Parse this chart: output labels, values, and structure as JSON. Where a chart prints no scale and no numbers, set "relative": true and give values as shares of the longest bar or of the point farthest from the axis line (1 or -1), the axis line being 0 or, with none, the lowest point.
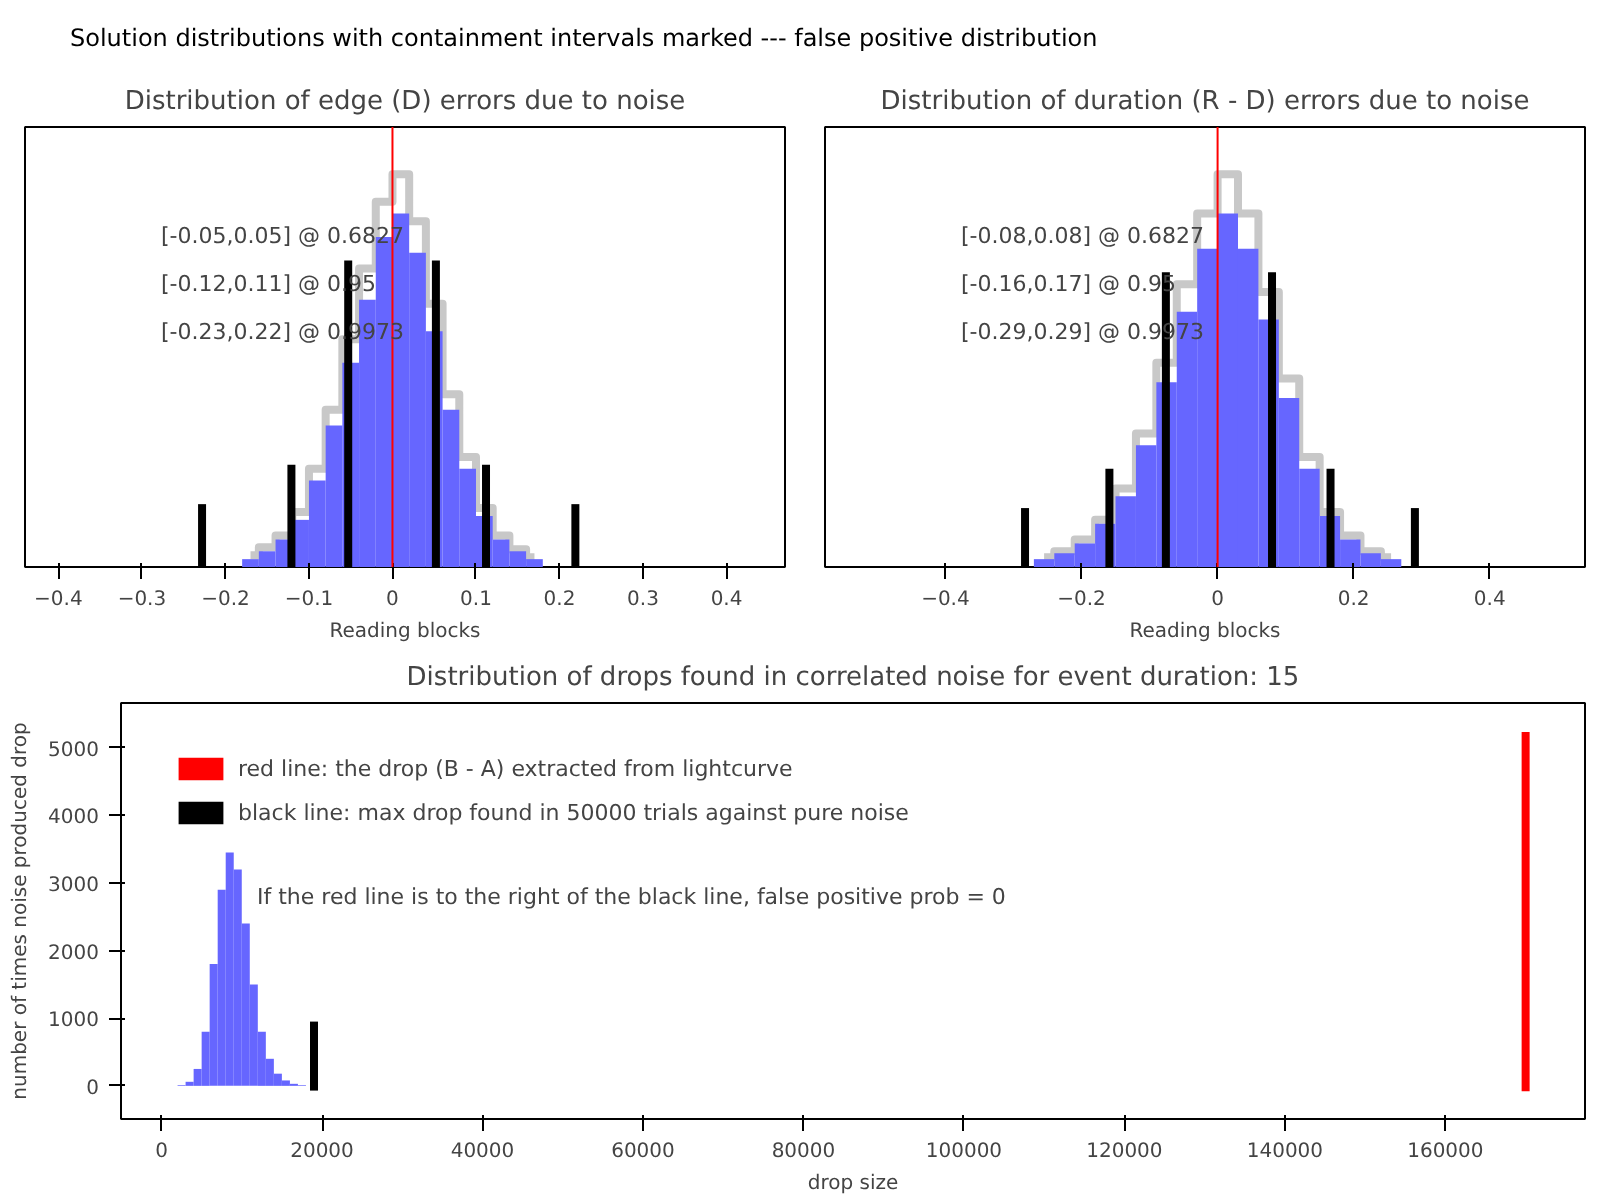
{
  "chart_data": [
    {
      "type": "other",
      "title": "Solution distributions with containment intervals marked --- false positive distribution"
    },
    {
      "type": "histogram",
      "title": "Distribution of edge (D) errors due to noise",
      "xlabel": "Reading blocks",
      "relative": true,
      "bins": [
        -0.18,
        -0.16,
        -0.14,
        -0.12,
        -0.1,
        -0.08,
        -0.06,
        -0.04,
        -0.02,
        0,
        0.02,
        0.04,
        0.06,
        0.08,
        0.1,
        0.12,
        0.14,
        0.16,
        0.18
      ],
      "xlim": [
        -0.44,
        0.47
      ],
      "xticks": [
        -0.4,
        -0.3,
        -0.2,
        -0.1,
        0,
        0.1,
        0.2,
        0.3,
        0.4
      ],
      "tick_labels": "x",
      "ref_lines": [
        {
          "axis": "x",
          "value": 0,
          "color": "#ff0000"
        }
      ],
      "annotations": [
        "[-0.05,0.05] @ 0.6827",
        "[-0.12,0.11] @ 0.95",
        "[-0.23,0.22] @ 0.9973"
      ],
      "series": [
        {
          "type": "step",
          "color": "#c8c8c8",
          "x": [
            -0.17,
            -0.15,
            -0.13,
            -0.11,
            -0.09,
            -0.07,
            -0.05,
            -0.03,
            -0.01,
            0.01,
            0.03,
            0.05,
            0.07,
            0.09,
            0.11,
            0.13,
            0.15,
            0.17
          ],
          "values": [
            0.03,
            0.05,
            0.08,
            0.14,
            0.25,
            0.4,
            0.58,
            0.76,
            0.93,
            1.0,
            0.88,
            0.67,
            0.44,
            0.28,
            0.15,
            0.08,
            0.045,
            0.025
          ]
        },
        {
          "color": "#6666ff",
          "values": [
            0.02,
            0.04,
            0.07,
            0.12,
            0.22,
            0.36,
            0.52,
            0.68,
            0.84,
            0.9,
            0.8,
            0.6,
            0.4,
            0.25,
            0.13,
            0.07,
            0.04,
            0.02
          ]
        },
        {
          "type": "bar",
          "color": "#000000",
          "x": [
            -0.228,
            -0.121,
            -0.053,
            0.052,
            0.112,
            0.219
          ],
          "values": [
            0.16,
            0.26,
            0.78,
            0.78,
            0.26,
            0.16
          ]
        }
      ]
    },
    {
      "type": "histogram",
      "title": "Distribution of duration (R - D) errors due to noise",
      "xlabel": "Reading blocks",
      "relative": true,
      "bins": [
        -0.27,
        -0.24,
        -0.21,
        -0.18,
        -0.15,
        -0.12,
        -0.09,
        -0.06,
        -0.03,
        0,
        0.03,
        0.06,
        0.09,
        0.12,
        0.15,
        0.18,
        0.21,
        0.24,
        0.27
      ],
      "xlim": [
        -0.577,
        0.54
      ],
      "xticks": [
        -0.4,
        -0.2,
        0,
        0.2,
        0.4
      ],
      "tick_labels": "x",
      "ref_lines": [
        {
          "axis": "x",
          "value": 0,
          "color": "#ff0000"
        }
      ],
      "annotations": [
        "[-0.08,0.08] @ 0.6827",
        "[-0.16,0.17] @ 0.95",
        "[-0.29,0.29] @ 0.9973"
      ],
      "series": [
        {
          "type": "step",
          "color": "#c8c8c8",
          "x": [
            -0.255,
            -0.225,
            -0.195,
            -0.165,
            -0.135,
            -0.105,
            -0.075,
            -0.045,
            -0.015,
            0.015,
            0.045,
            0.075,
            0.105,
            0.135,
            0.165,
            0.195,
            0.225,
            0.255
          ],
          "values": [
            0.025,
            0.04,
            0.07,
            0.12,
            0.2,
            0.34,
            0.52,
            0.72,
            0.9,
            1.0,
            0.9,
            0.7,
            0.48,
            0.28,
            0.14,
            0.08,
            0.04,
            0.025
          ]
        },
        {
          "color": "#6666ff",
          "values": [
            0.02,
            0.035,
            0.06,
            0.11,
            0.18,
            0.31,
            0.47,
            0.65,
            0.81,
            0.9,
            0.81,
            0.63,
            0.43,
            0.25,
            0.13,
            0.07,
            0.035,
            0.02
          ]
        },
        {
          "type": "bar",
          "color": "#000000",
          "x": [
            -0.283,
            -0.159,
            -0.076,
            0.08,
            0.166,
            0.29
          ],
          "values": [
            0.15,
            0.25,
            0.75,
            0.75,
            0.25,
            0.15
          ]
        }
      ]
    },
    {
      "type": "histogram",
      "title": "Distribution of drops found in correlated noise for event duration: 15",
      "xlabel": "drop size",
      "ylabel": "number of times noise produced drop",
      "bins": [
        2000,
        3000,
        4000,
        5000,
        6000,
        7000,
        8000,
        9000,
        10000,
        11000,
        12000,
        13000,
        14000,
        15000,
        16000,
        17000,
        18000
      ],
      "xlim": [
        -5050,
        177400
      ],
      "xticks": [
        0,
        20000,
        40000,
        60000,
        80000,
        100000,
        120000,
        140000,
        160000
      ],
      "ylim": [
        -490,
        5660
      ],
      "yticks": [
        0,
        1000,
        2000,
        3000,
        4000,
        5000
      ],
      "legend": "top left",
      "annotations": [
        "If the red line is to the right of the black line, false positive prob = 0"
      ],
      "series": [
        {
          "color": "#6666ff",
          "values": [
            10,
            60,
            250,
            800,
            1800,
            2900,
            3450,
            3200,
            2400,
            1500,
            800,
            400,
            180,
            80,
            30,
            10
          ]
        },
        {
          "type": "bar",
          "name": "red line: the drop (B - A) extracted from lightcurve",
          "color": "#ff0000",
          "x": [
            170000
          ],
          "values": [
            5310
          ],
          "base": [
            -80
          ]
        },
        {
          "type": "bar",
          "name": "black line: max drop found in 50000 trials against pure noise",
          "color": "#000000",
          "x": [
            19000
          ],
          "values": [
            1020
          ],
          "base": [
            -70
          ]
        }
      ]
    }
  ]
}
